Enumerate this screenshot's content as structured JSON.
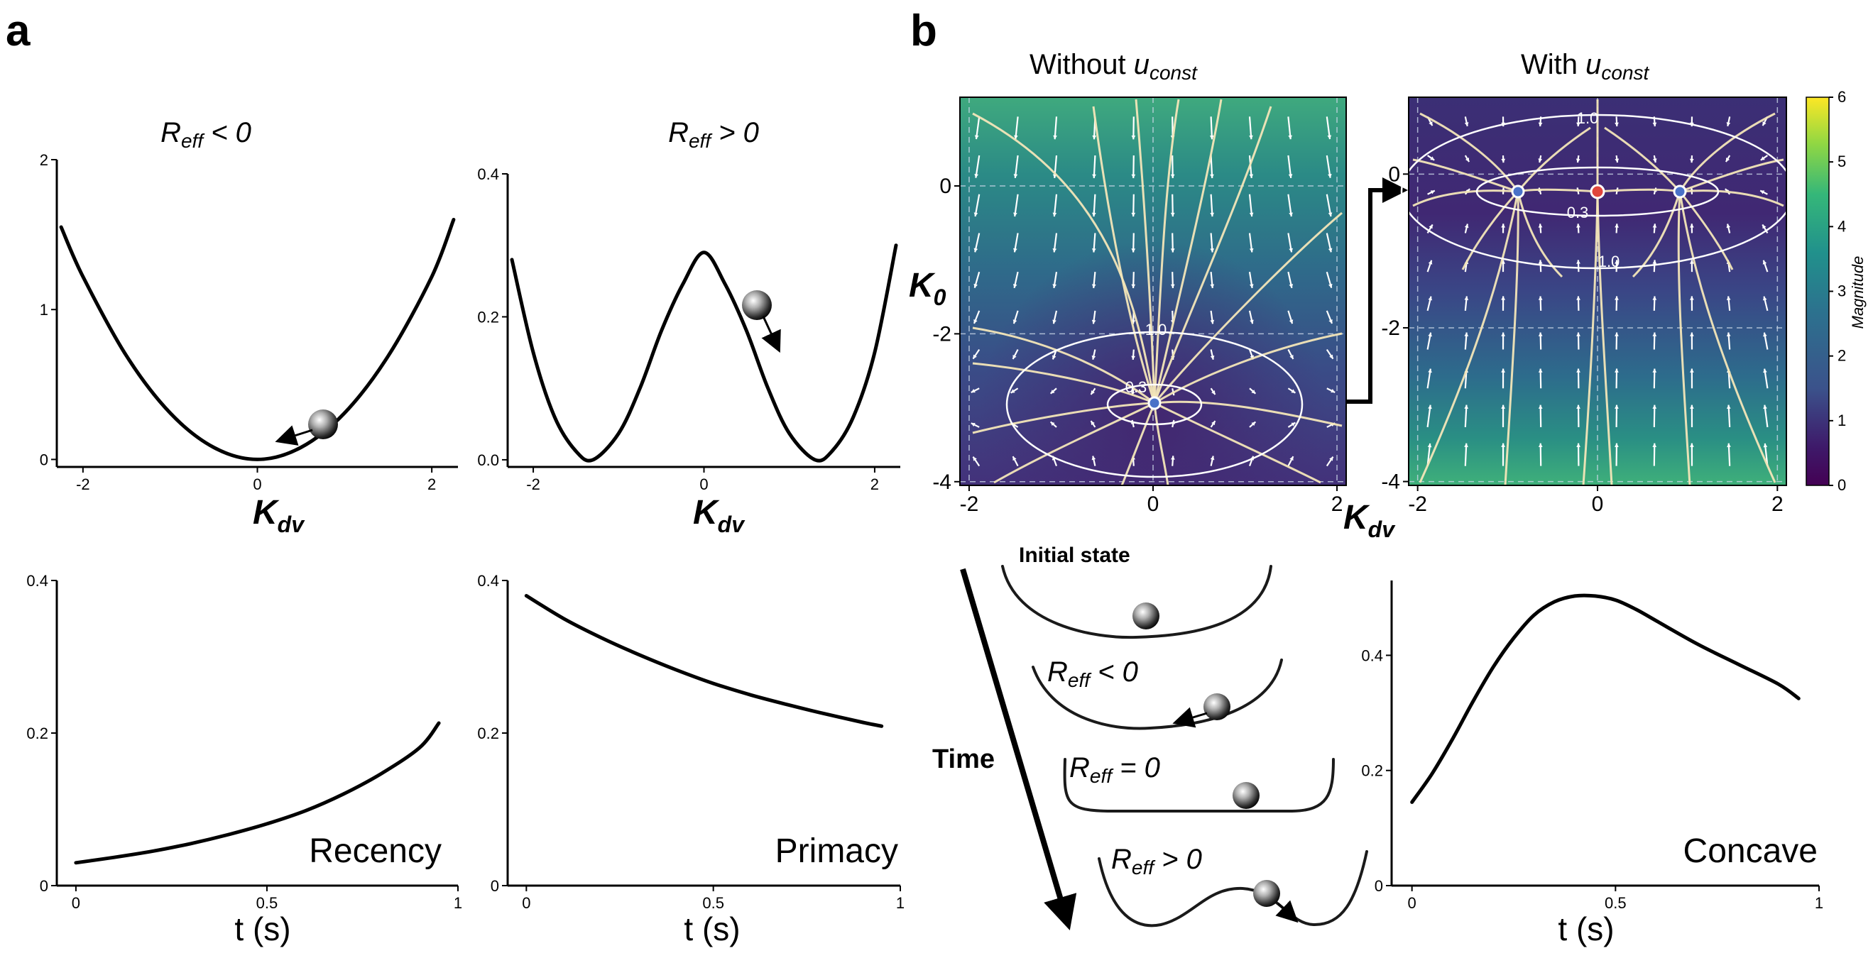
{
  "panel_letters": {
    "a": "a",
    "b": "b"
  },
  "colors": {
    "curve": "#000000",
    "streamline": "#f3e6b8",
    "fixed_point_stable": "#4a72c8",
    "fixed_point_unstable": "#e0463c",
    "contour": "#ffffff",
    "viridis": [
      "#440154",
      "#3b528b",
      "#21918c",
      "#5ec962",
      "#fde725"
    ]
  },
  "panel_a": {
    "top_left_title": {
      "main": "R",
      "sub": "eff",
      "rest": " < 0"
    },
    "top_right_title": {
      "main": "R",
      "sub": "eff",
      "rest": " > 0"
    },
    "x_axis_label": {
      "main": "K",
      "sub": "dv"
    },
    "bottom_x_label": "t (s)",
    "bottom_left_annotation": "Recency",
    "bottom_right_annotation": "Primacy"
  },
  "panel_b": {
    "title_left": {
      "prefix": "Without ",
      "main": "u",
      "sub": "const"
    },
    "title_right": {
      "prefix": "With ",
      "main": "u",
      "sub": "const"
    },
    "y_axis_label": {
      "main": "K",
      "sub": "0"
    },
    "x_axis_label": {
      "main": "K",
      "sub": "dv"
    },
    "colorbar_label": "Magnitude",
    "colorbar_ticks": [
      "0",
      "1",
      "2",
      "3",
      "4",
      "5",
      "6"
    ],
    "contour_labels_left": [
      "1.0",
      "0.3"
    ],
    "contour_labels_right": [
      "1.0",
      "0.3",
      "1.0"
    ],
    "schematic": {
      "initial": "Initial state",
      "time": "Time",
      "stage_neg": {
        "main": "R",
        "sub": "eff",
        "rest": " < 0"
      },
      "stage_zero": {
        "main": "R",
        "sub": "eff",
        "rest": " = 0"
      },
      "stage_pos": {
        "main": "R",
        "sub": "eff",
        "rest": " > 0"
      }
    },
    "bottom_right_annotation": "Concave",
    "bottom_x_label": "t (s)"
  },
  "chart_data": [
    {
      "id": "a-top-left",
      "type": "line",
      "title": "Reff < 0",
      "xlabel": "Kdv",
      "ylabel": "",
      "xlim": [
        -2.3,
        2.3
      ],
      "ylim": [
        -0.05,
        2.0
      ],
      "xticks": [
        -2,
        0,
        2
      ],
      "yticks": [
        0,
        1,
        2
      ],
      "series": [
        {
          "x": [
            -2.25,
            -2,
            -1.5,
            -1,
            -0.5,
            0,
            0.5,
            1,
            1.5,
            2,
            2.25
          ],
          "values": [
            1.55,
            1.22,
            0.69,
            0.31,
            0.08,
            0.0,
            0.08,
            0.31,
            0.69,
            1.22,
            1.6
          ]
        }
      ]
    },
    {
      "id": "a-top-right",
      "type": "line",
      "title": "Reff > 0",
      "xlabel": "Kdv",
      "ylabel": "",
      "xlim": [
        -2.3,
        2.3
      ],
      "ylim": [
        -0.01,
        0.4
      ],
      "xticks": [
        -2,
        0,
        2
      ],
      "yticks": [
        0.0,
        0.2,
        0.4
      ],
      "series": [
        {
          "x": [
            -2.25,
            -2,
            -1.75,
            -1.5,
            -1.3,
            -1,
            -0.75,
            -0.5,
            -0.25,
            0,
            0.25,
            0.5,
            0.75,
            1,
            1.3,
            1.5,
            1.75,
            2,
            2.25
          ],
          "values": [
            0.28,
            0.15,
            0.06,
            0.012,
            0.0,
            0.037,
            0.1,
            0.18,
            0.245,
            0.29,
            0.245,
            0.18,
            0.1,
            0.037,
            0.0,
            0.012,
            0.06,
            0.15,
            0.3
          ]
        }
      ]
    },
    {
      "id": "a-bottom-left",
      "type": "line",
      "xlabel": "t (s)",
      "ylabel": "",
      "xlim": [
        -0.05,
        1.0
      ],
      "ylim": [
        0,
        0.4
      ],
      "xticks": [
        0,
        0.5,
        1
      ],
      "yticks": [
        0,
        0.2,
        0.4
      ],
      "annotation": "Recency",
      "series": [
        {
          "x": [
            0,
            0.1,
            0.2,
            0.3,
            0.4,
            0.5,
            0.6,
            0.7,
            0.8,
            0.9,
            0.95
          ],
          "values": [
            0.03,
            0.037,
            0.045,
            0.055,
            0.067,
            0.081,
            0.098,
            0.12,
            0.147,
            0.181,
            0.213
          ]
        }
      ]
    },
    {
      "id": "a-bottom-right",
      "type": "line",
      "xlabel": "t (s)",
      "ylabel": "",
      "xlim": [
        -0.05,
        1.0
      ],
      "ylim": [
        0,
        0.4
      ],
      "xticks": [
        0,
        0.5,
        1
      ],
      "yticks": [
        0,
        0.2,
        0.4
      ],
      "annotation": "Primacy",
      "series": [
        {
          "x": [
            0,
            0.1,
            0.2,
            0.3,
            0.4,
            0.5,
            0.6,
            0.7,
            0.8,
            0.9,
            0.95
          ],
          "values": [
            0.38,
            0.35,
            0.325,
            0.303,
            0.283,
            0.265,
            0.25,
            0.237,
            0.225,
            0.214,
            0.209
          ]
        }
      ]
    },
    {
      "id": "b-bottom-right",
      "type": "line",
      "xlabel": "t (s)",
      "ylabel": "",
      "xlim": [
        -0.05,
        1.0
      ],
      "ylim": [
        0,
        0.53
      ],
      "xticks": [
        0,
        0.5,
        1
      ],
      "yticks": [
        0,
        0.2,
        0.4
      ],
      "annotation": "Concave",
      "series": [
        {
          "x": [
            0,
            0.05,
            0.1,
            0.15,
            0.2,
            0.25,
            0.3,
            0.35,
            0.4,
            0.45,
            0.5,
            0.55,
            0.6,
            0.7,
            0.8,
            0.9,
            0.95
          ],
          "values": [
            0.145,
            0.195,
            0.255,
            0.32,
            0.38,
            0.43,
            0.47,
            0.493,
            0.503,
            0.503,
            0.496,
            0.48,
            0.46,
            0.42,
            0.385,
            0.35,
            0.325
          ]
        }
      ]
    },
    {
      "id": "b-phase-left",
      "type": "heatmap",
      "title": "Without u_const",
      "xlabel": "Kdv",
      "ylabel": "K0",
      "xlim": [
        -2.1,
        2.1
      ],
      "ylim": [
        -4.05,
        1.2
      ],
      "xticks": [
        -2,
        0,
        2
      ],
      "yticks": [
        -4,
        -2,
        0
      ],
      "fixed_points": [
        {
          "x": 0,
          "y": -3,
          "kind": "stable"
        }
      ],
      "contours": [
        {
          "level": 1.0
        },
        {
          "level": 0.3
        }
      ],
      "colorbar": {
        "min": 0,
        "max": 6,
        "label": "Magnitude"
      }
    },
    {
      "id": "b-phase-right",
      "type": "heatmap",
      "title": "With u_const",
      "xlabel": "",
      "ylabel": "",
      "xlim": [
        -2.1,
        2.1
      ],
      "ylim": [
        -4.05,
        1.0
      ],
      "xticks": [
        -2,
        0,
        2
      ],
      "yticks": [
        -4,
        -2,
        0
      ],
      "fixed_points": [
        {
          "x": -0.9,
          "y": -0.05,
          "kind": "stable"
        },
        {
          "x": 0,
          "y": -0.05,
          "kind": "unstable"
        },
        {
          "x": 0.9,
          "y": -0.05,
          "kind": "stable"
        }
      ],
      "contours": [
        {
          "level": 1.0
        },
        {
          "level": 0.3
        },
        {
          "level": 1.0
        }
      ],
      "colorbar": {
        "min": 0,
        "max": 6,
        "label": "Magnitude"
      }
    }
  ]
}
